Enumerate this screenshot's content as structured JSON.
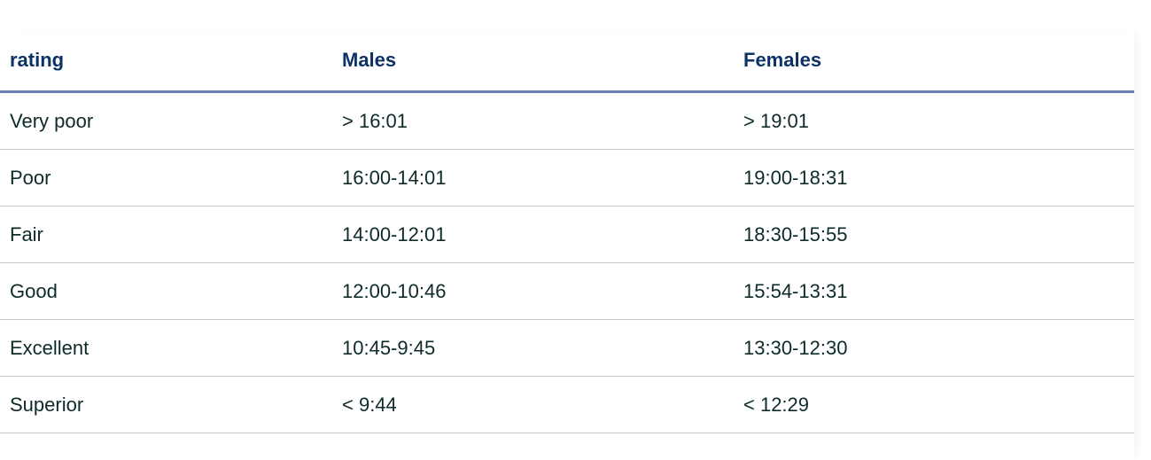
{
  "table": {
    "headers": [
      "rating",
      "Males",
      "Females"
    ],
    "rows": [
      [
        "Very poor",
        "> 16:01",
        "> 19:01"
      ],
      [
        "Poor",
        "16:00-14:01",
        "19:00-18:31"
      ],
      [
        "Fair",
        "14:00-12:01",
        "18:30-15:55"
      ],
      [
        "Good",
        "12:00-10:46",
        "15:54-13:31"
      ],
      [
        "Excellent",
        "10:45-9:45",
        "13:30-12:30"
      ],
      [
        "Superior",
        "< 9:44",
        "< 12:29"
      ]
    ]
  },
  "colors": {
    "header_text": "#0d3366",
    "header_rule": "#6b7fb4",
    "body_text": "#0f2a2a",
    "row_divider": "#c8c8c8"
  }
}
